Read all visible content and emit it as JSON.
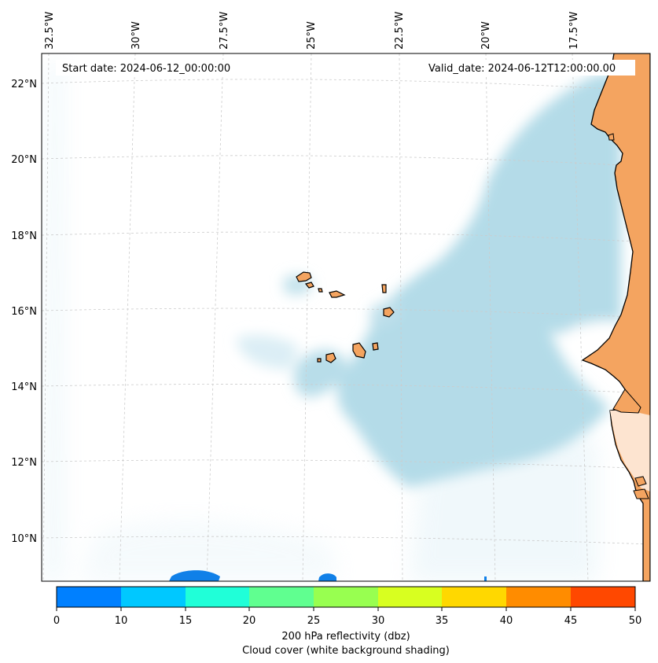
{
  "map": {
    "start_date_label": "Start date: 2024-06-12_00:00:00",
    "valid_date_label": "Valid_date: 2024-06-12T12:00:00.00",
    "lon_labels": [
      "32.5°W",
      "30°W",
      "27.5°W",
      "25°W",
      "22.5°W",
      "20°W",
      "17.5°W"
    ],
    "lat_labels": [
      "22°N",
      "20°N",
      "18°N",
      "16°N",
      "14°N",
      "12°N",
      "10°N"
    ],
    "colors": {
      "land": "#f4a460",
      "cloud": "#add8e6",
      "coast": "#000000",
      "grid": "#c8c8c8"
    }
  },
  "colorbar": {
    "ticks": [
      "0",
      "10",
      "15",
      "20",
      "25",
      "30",
      "35",
      "40",
      "45",
      "50"
    ],
    "colors": [
      "#0080ff",
      "#00c8ff",
      "#20ffd8",
      "#60ff90",
      "#98ff50",
      "#d8ff20",
      "#ffd800",
      "#ff8c00",
      "#ff4800"
    ],
    "label_line1": "200 hPa reflectivity (dbz)",
    "label_line2": "Cloud cover (white background shading)"
  }
}
